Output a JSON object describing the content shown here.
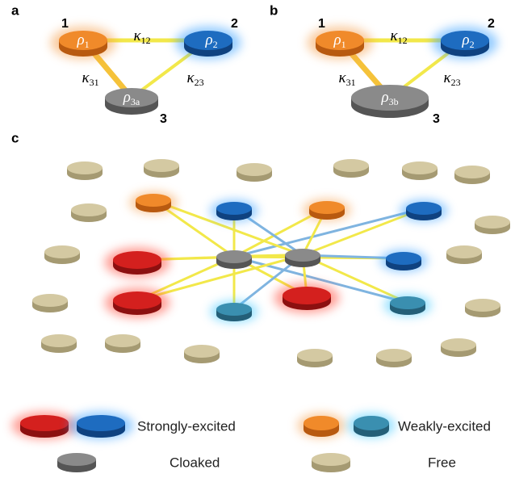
{
  "panels": {
    "a": {
      "label": "a",
      "nodes": [
        {
          "number": "1",
          "symbol": "ρ",
          "sub": "1"
        },
        {
          "number": "2",
          "symbol": "ρ",
          "sub": "2"
        },
        {
          "number": "3",
          "symbol": "ρ",
          "sub": "3a"
        }
      ],
      "edges": [
        {
          "symbol": "κ",
          "sub": "12"
        },
        {
          "symbol": "κ",
          "sub": "31"
        },
        {
          "symbol": "κ",
          "sub": "23"
        }
      ]
    },
    "b": {
      "label": "b",
      "nodes": [
        {
          "number": "1",
          "symbol": "ρ",
          "sub": "1"
        },
        {
          "number": "2",
          "symbol": "ρ",
          "sub": "2"
        },
        {
          "number": "3",
          "symbol": "ρ",
          "sub": "3b"
        }
      ],
      "edges": [
        {
          "symbol": "κ",
          "sub": "12"
        },
        {
          "symbol": "κ",
          "sub": "31"
        },
        {
          "symbol": "κ",
          "sub": "23"
        }
      ]
    },
    "c": {
      "label": "c"
    }
  },
  "legend": [
    {
      "label": "Strongly-excited"
    },
    {
      "label": "Weakly-excited"
    },
    {
      "label": "Cloaked"
    },
    {
      "label": "Free"
    }
  ]
}
